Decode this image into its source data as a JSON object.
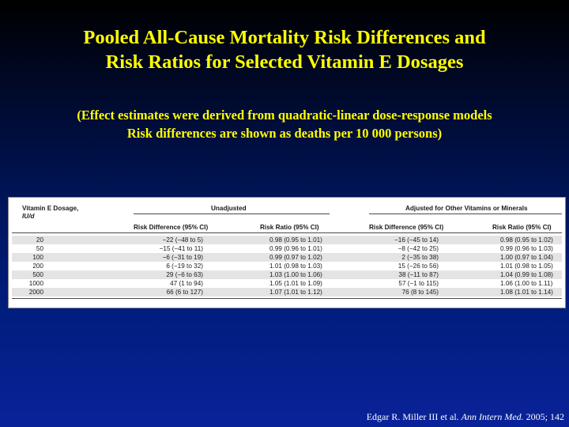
{
  "slide": {
    "title_line1": "Pooled All-Cause Mortality Risk Differences and",
    "title_line2": "Risk Ratios for Selected Vitamin E Dosages",
    "subtitle_line1": "(Effect estimates were derived from quadratic-linear dose-response models",
    "subtitle_line2": "Risk differences are shown as deaths per 10 000 persons)"
  },
  "table": {
    "dosage_header_line1": "Vitamin E Dosage,",
    "dosage_header_line2": "IU/d",
    "group_unadjusted": "Unadjusted",
    "group_adjusted": "Adjusted for Other Vitamins or Minerals",
    "col_unadj_rd": "Risk Difference (95% CI)",
    "col_unadj_rr": "Risk Ratio (95% CI)",
    "col_adj_rd": "Risk Difference (95% CI)",
    "col_adj_rr": "Risk Ratio (95% CI)",
    "rows": [
      {
        "dosage": "20",
        "unadj_rd": "−22 (−48 to 5)",
        "unadj_rr": "0.98 (0.95 to 1.01)",
        "adj_rd": "−16 (−45 to 14)",
        "adj_rr": "0.98 (0.95 to 1.02)"
      },
      {
        "dosage": "50",
        "unadj_rd": "−15 (−41 to 11)",
        "unadj_rr": "0.99 (0.96 to 1.01)",
        "adj_rd": "−8 (−42 to 25)",
        "adj_rr": "0.99 (0.96 to 1.03)"
      },
      {
        "dosage": "100",
        "unadj_rd": "−6 (−31 to 19)",
        "unadj_rr": "0.99 (0.97 to 1.02)",
        "adj_rd": "2 (−35 to 38)",
        "adj_rr": "1.00 (0.97 to 1.04)"
      },
      {
        "dosage": "200",
        "unadj_rd": "6 (−19 to 32)",
        "unadj_rr": "1.01 (0.98 to 1.03)",
        "adj_rd": "15 (−26 to 56)",
        "adj_rr": "1.01 (0.98 to 1.05)"
      },
      {
        "dosage": "500",
        "unadj_rd": "29 (−6 to 63)",
        "unadj_rr": "1.03 (1.00 to 1.06)",
        "adj_rd": "38 (−11 to 87)",
        "adj_rr": "1.04 (0.99 to 1.08)"
      },
      {
        "dosage": "1000",
        "unadj_rd": "47 (1 to 94)",
        "unadj_rr": "1.05 (1.01 to 1.09)",
        "adj_rd": "57 (−1 to 115)",
        "adj_rr": "1.06 (1.00 to 1.11)"
      },
      {
        "dosage": "2000",
        "unadj_rd": "66 (6 to 127)",
        "unadj_rr": "1.07 (1.01 to 1.12)",
        "adj_rd": "76 (8 to 145)",
        "adj_rr": "1.08 (1.01 to 1.14)"
      }
    ]
  },
  "citation": {
    "authors": "Edgar R. Miller III et al.",
    "journal": "Ann Intern Med.",
    "year_vol": "2005; 142"
  },
  "colors": {
    "title": "#ffff00",
    "background_top": "#000000",
    "background_bottom": "#0a2299",
    "row_band": "#e4e4e4"
  }
}
